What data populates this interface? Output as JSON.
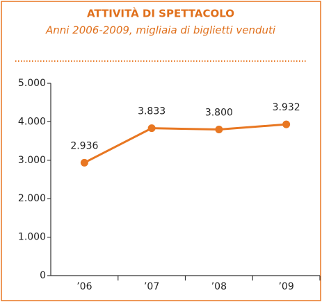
{
  "chart_data": {
    "type": "line",
    "title": "ATTIVITÀ DI SPETTACOLO",
    "subtitle": "Anni 2006-2009, migliaia di biglietti venduti",
    "categories": [
      "’06",
      "’07",
      "’08",
      "’09"
    ],
    "values": [
      2936,
      3833,
      3800,
      3932
    ],
    "value_labels": [
      "2.936",
      "3.833",
      "3.800",
      "3.932"
    ],
    "color": "#e87722",
    "ylim": [
      0,
      5000
    ],
    "yticks": [
      {
        "value": 0,
        "label": "0"
      },
      {
        "value": 1000,
        "label": "1.000"
      },
      {
        "value": 2000,
        "label": "2.000"
      },
      {
        "value": 3000,
        "label": "3.000"
      },
      {
        "value": 4000,
        "label": "4.000"
      },
      {
        "value": 5000,
        "label": "5.000"
      }
    ]
  }
}
